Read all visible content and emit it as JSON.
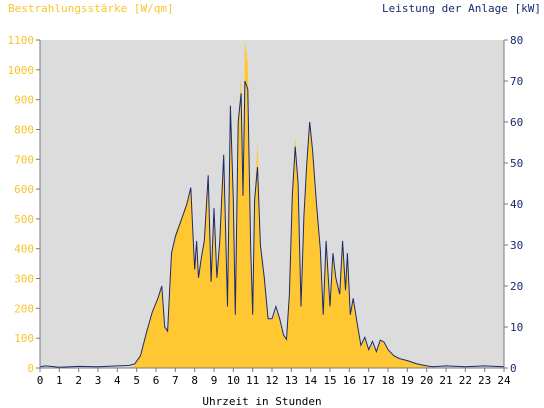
{
  "chart_data": {
    "type": "area",
    "ylabel_left": "Bestrahlungsstärke [W/qm]",
    "ylabel_right": "Leistung der Anlage [kW]",
    "xlabel": "Uhrzeit in Stunden",
    "xlim": [
      0,
      24
    ],
    "ylim_left": [
      0,
      1100
    ],
    "ylim_right": [
      0,
      80
    ],
    "x_ticks": [
      "0",
      "1",
      "2",
      "3",
      "4",
      "5",
      "6",
      "7",
      "8",
      "9",
      "10",
      "11",
      "12",
      "13",
      "14",
      "15",
      "16",
      "17",
      "18",
      "19",
      "20",
      "21",
      "22",
      "23",
      "24"
    ],
    "y_ticks_left": [
      "0",
      "100",
      "200",
      "300",
      "400",
      "500",
      "600",
      "700",
      "800",
      "900",
      "1000",
      "1100"
    ],
    "y_ticks_right": [
      "0",
      "10",
      "20",
      "30",
      "40",
      "50",
      "60",
      "70",
      "80"
    ],
    "grid": false,
    "colors": {
      "irradiance": "#ffc832",
      "power": "#1a2a6e",
      "plot_bg": "#dcdcdc"
    },
    "series": [
      {
        "values": [
          [
            0,
            0
          ],
          [
            4.6,
            0
          ],
          [
            4.9,
            8
          ],
          [
            5.2,
            45
          ],
          [
            5.5,
            120
          ],
          [
            5.8,
            190
          ],
          [
            6.1,
            230
          ],
          [
            6.3,
            270
          ],
          [
            6.45,
            140
          ],
          [
            6.6,
            120
          ],
          [
            6.8,
            380
          ],
          [
            7.0,
            450
          ],
          [
            7.3,
            500
          ],
          [
            7.6,
            560
          ],
          [
            7.8,
            600
          ],
          [
            7.9,
            470
          ],
          [
            8.0,
            320
          ],
          [
            8.1,
            420
          ],
          [
            8.2,
            300
          ],
          [
            8.35,
            380
          ],
          [
            8.5,
            420
          ],
          [
            8.7,
            620
          ],
          [
            8.85,
            280
          ],
          [
            9.0,
            540
          ],
          [
            9.15,
            300
          ],
          [
            9.3,
            420
          ],
          [
            9.5,
            720
          ],
          [
            9.7,
            200
          ],
          [
            9.85,
            850
          ],
          [
            10.0,
            560
          ],
          [
            10.1,
            180
          ],
          [
            10.25,
            820
          ],
          [
            10.4,
            980
          ],
          [
            10.5,
            580
          ],
          [
            10.6,
            1100
          ],
          [
            10.75,
            1020
          ],
          [
            10.9,
            400
          ],
          [
            11.0,
            180
          ],
          [
            11.1,
            570
          ],
          [
            11.25,
            760
          ],
          [
            11.4,
            420
          ],
          [
            11.6,
            300
          ],
          [
            11.8,
            170
          ],
          [
            12.0,
            160
          ],
          [
            12.2,
            190
          ],
          [
            12.4,
            160
          ],
          [
            12.6,
            110
          ],
          [
            12.75,
            100
          ],
          [
            12.9,
            250
          ],
          [
            13.05,
            600
          ],
          [
            13.2,
            780
          ],
          [
            13.35,
            620
          ],
          [
            13.5,
            200
          ],
          [
            13.65,
            500
          ],
          [
            13.8,
            680
          ],
          [
            13.95,
            820
          ],
          [
            14.1,
            720
          ],
          [
            14.3,
            550
          ],
          [
            14.5,
            400
          ],
          [
            14.65,
            180
          ],
          [
            14.8,
            420
          ],
          [
            15.0,
            200
          ],
          [
            15.15,
            380
          ],
          [
            15.3,
            300
          ],
          [
            15.5,
            240
          ],
          [
            15.65,
            430
          ],
          [
            15.8,
            260
          ],
          [
            15.9,
            390
          ],
          [
            16.05,
            180
          ],
          [
            16.2,
            230
          ],
          [
            16.4,
            150
          ],
          [
            16.6,
            70
          ],
          [
            16.8,
            100
          ],
          [
            17.0,
            60
          ],
          [
            17.2,
            80
          ],
          [
            17.4,
            50
          ],
          [
            17.6,
            90
          ],
          [
            17.8,
            85
          ],
          [
            18.0,
            60
          ],
          [
            18.3,
            40
          ],
          [
            18.6,
            30
          ],
          [
            19.0,
            25
          ],
          [
            19.5,
            15
          ],
          [
            20.0,
            5
          ],
          [
            20.3,
            0
          ],
          [
            24,
            0
          ]
        ]
      },
      {
        "values": [
          [
            0,
            0.3
          ],
          [
            0.3,
            0.5
          ],
          [
            1.0,
            0.2
          ],
          [
            2.0,
            0.4
          ],
          [
            3.0,
            0.3
          ],
          [
            4.0,
            0.5
          ],
          [
            4.6,
            0.6
          ],
          [
            4.9,
            1.0
          ],
          [
            5.2,
            3.0
          ],
          [
            5.5,
            8.5
          ],
          [
            5.8,
            13.5
          ],
          [
            6.1,
            17.0
          ],
          [
            6.3,
            20.0
          ],
          [
            6.45,
            10.0
          ],
          [
            6.6,
            9.0
          ],
          [
            6.8,
            28.0
          ],
          [
            7.0,
            32.0
          ],
          [
            7.3,
            36.0
          ],
          [
            7.6,
            40.0
          ],
          [
            7.8,
            44.0
          ],
          [
            7.9,
            34.0
          ],
          [
            8.0,
            24.0
          ],
          [
            8.1,
            31.0
          ],
          [
            8.2,
            22.0
          ],
          [
            8.35,
            27.0
          ],
          [
            8.5,
            31.0
          ],
          [
            8.7,
            47.0
          ],
          [
            8.85,
            21.0
          ],
          [
            9.0,
            39.0
          ],
          [
            9.15,
            22.0
          ],
          [
            9.3,
            31.0
          ],
          [
            9.5,
            52.0
          ],
          [
            9.7,
            15.0
          ],
          [
            9.85,
            64.0
          ],
          [
            10.0,
            41.0
          ],
          [
            10.1,
            13.0
          ],
          [
            10.25,
            60.0
          ],
          [
            10.4,
            67.0
          ],
          [
            10.5,
            42.0
          ],
          [
            10.6,
            70.0
          ],
          [
            10.75,
            68.0
          ],
          [
            10.9,
            29.0
          ],
          [
            11.0,
            13.0
          ],
          [
            11.1,
            41.0
          ],
          [
            11.25,
            49.0
          ],
          [
            11.4,
            30.0
          ],
          [
            11.6,
            22.0
          ],
          [
            11.8,
            12.0
          ],
          [
            12.0,
            12.0
          ],
          [
            12.2,
            15.0
          ],
          [
            12.4,
            12.0
          ],
          [
            12.6,
            8.0
          ],
          [
            12.75,
            7.0
          ],
          [
            12.9,
            18.0
          ],
          [
            13.05,
            42.0
          ],
          [
            13.2,
            54.0
          ],
          [
            13.35,
            45.0
          ],
          [
            13.5,
            15.0
          ],
          [
            13.65,
            37.0
          ],
          [
            13.8,
            50.0
          ],
          [
            13.95,
            60.0
          ],
          [
            14.1,
            53.0
          ],
          [
            14.3,
            40.0
          ],
          [
            14.5,
            29.0
          ],
          [
            14.65,
            13.0
          ],
          [
            14.8,
            31.0
          ],
          [
            15.0,
            15.0
          ],
          [
            15.15,
            28.0
          ],
          [
            15.3,
            22.0
          ],
          [
            15.5,
            18.0
          ],
          [
            15.65,
            31.0
          ],
          [
            15.8,
            19.0
          ],
          [
            15.9,
            28.0
          ],
          [
            16.05,
            13.0
          ],
          [
            16.2,
            17.0
          ],
          [
            16.4,
            11.0
          ],
          [
            16.6,
            5.5
          ],
          [
            16.8,
            7.5
          ],
          [
            17.0,
            4.5
          ],
          [
            17.2,
            6.5
          ],
          [
            17.4,
            4.0
          ],
          [
            17.6,
            6.8
          ],
          [
            17.8,
            6.3
          ],
          [
            18.0,
            4.5
          ],
          [
            18.3,
            3.0
          ],
          [
            18.6,
            2.3
          ],
          [
            19.0,
            1.8
          ],
          [
            19.5,
            1.0
          ],
          [
            20.0,
            0.5
          ],
          [
            20.3,
            0.3
          ],
          [
            21.0,
            0.5
          ],
          [
            22.0,
            0.3
          ],
          [
            23.0,
            0.5
          ],
          [
            24,
            0.3
          ]
        ]
      }
    ]
  }
}
